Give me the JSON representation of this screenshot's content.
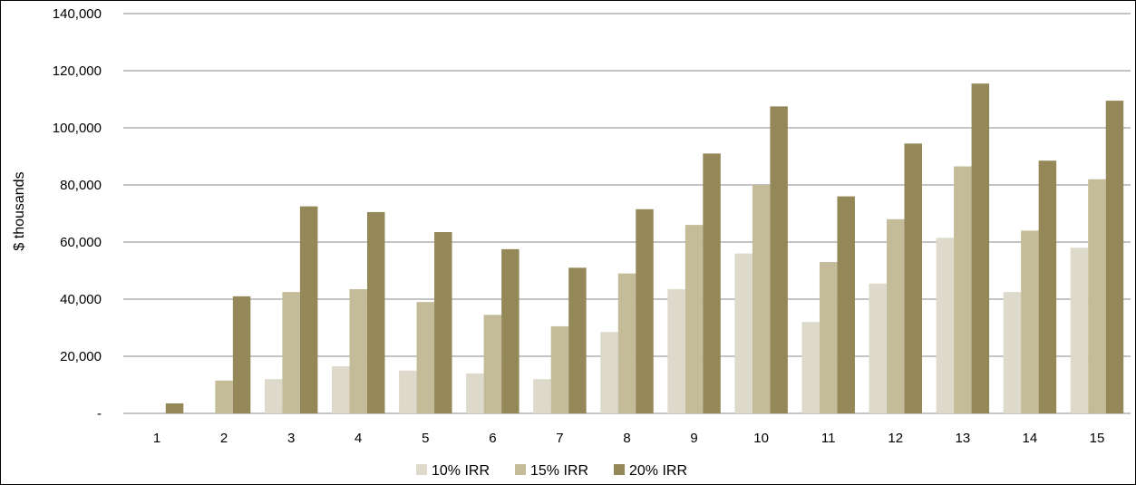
{
  "chart_data": {
    "type": "bar",
    "title": "",
    "xlabel": "",
    "ylabel": "$ thousands",
    "ylim": [
      0,
      140000
    ],
    "yticks": [
      0,
      20000,
      40000,
      60000,
      80000,
      100000,
      120000,
      140000
    ],
    "ytick_labels": [
      "-",
      "20,000",
      "40,000",
      "60,000",
      "80,000",
      "100,000",
      "120,000",
      "140,000"
    ],
    "categories": [
      "1",
      "2",
      "3",
      "4",
      "5",
      "6",
      "7",
      "8",
      "9",
      "10",
      "11",
      "12",
      "13",
      "14",
      "15"
    ],
    "grid": true,
    "legend_position": "bottom",
    "series": [
      {
        "name": "10% IRR",
        "color": "#DEDACB",
        "values": [
          0,
          0,
          12000,
          16500,
          15000,
          14000,
          12000,
          28500,
          43500,
          56000,
          32000,
          45500,
          61500,
          42500,
          58000
        ]
      },
      {
        "name": "15% IRR",
        "color": "#C4BB99",
        "values": [
          0,
          11500,
          42500,
          43500,
          39000,
          34500,
          30500,
          49000,
          66000,
          80000,
          53000,
          68000,
          86500,
          64000,
          82000
        ]
      },
      {
        "name": "20% IRR",
        "color": "#958858",
        "values": [
          3500,
          41000,
          72500,
          70500,
          63500,
          57500,
          51000,
          71500,
          91000,
          107500,
          76000,
          94500,
          115500,
          88500,
          109500
        ]
      }
    ]
  }
}
